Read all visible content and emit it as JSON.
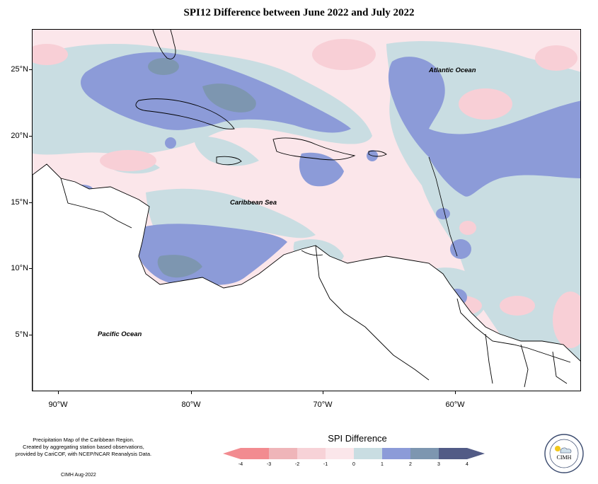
{
  "title": "SPI12 Difference between June 2022 and July 2022",
  "map": {
    "lat_labels": [
      "25°N",
      "20°N",
      "15°N",
      "10°N",
      "5°N"
    ],
    "lon_labels": [
      "90°W",
      "80°W",
      "70°W",
      "60°W"
    ],
    "place_labels": {
      "atlantic": "Atlantic Ocean",
      "caribbean": "Caribbean Sea",
      "pacific": "Pacific Ocean"
    },
    "colors": {
      "pos_0_1": "#c9dde2",
      "pos_1_2": "#8c9bd8",
      "pos_2_3": "#7d96b0",
      "neg_0_1": "#fbe6ea",
      "neg_1_2": "#f8cfd6",
      "land_outline": "#000000"
    }
  },
  "legend": {
    "title": "SPI Difference",
    "ticks": [
      "-4",
      "-3",
      "-2",
      "-1",
      "0",
      "1",
      "2",
      "3",
      "4"
    ],
    "colors": [
      "#f28b90",
      "#efb5b9",
      "#f7d2d7",
      "#fbe6ea",
      "#c9dde2",
      "#8c9bd8",
      "#7d96b0",
      "#525b86"
    ]
  },
  "credits": {
    "line1": "Precipitation Map of the Caribbean Region.",
    "line2": "Created by aggregating station based observations,",
    "line3": "provided by CariCOF, with NCEP/NCAR Reanalysis Data.",
    "date": "CIMH Aug-2022"
  },
  "logo": {
    "text": "CIMH",
    "icon": "cimh-logo-icon"
  }
}
